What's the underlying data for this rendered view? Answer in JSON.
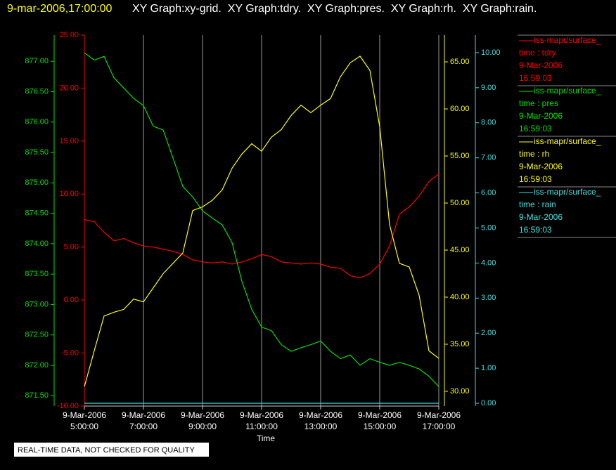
{
  "chart_data": {
    "type": "line",
    "title_time": "9-mar-2006,17:00:00",
    "title": "XY Graph:xy-grid.  XY Graph:tdry.  XY Graph:pres.  XY Graph:rh.  XY Graph:rain.",
    "x_label": "Time",
    "notice": "REAL-TIME DATA, NOT CHECKED FOR QUALITY",
    "grid": true,
    "xlim": [
      "2006-03-09T05:00:00",
      "2006-03-09T17:00:00"
    ],
    "xticks": [
      {
        "value": "2006-03-09T05:00:00",
        "label": [
          "9-Mar-2006",
          "5:00:00"
        ]
      },
      {
        "value": "2006-03-09T07:00:00",
        "label": [
          "9-Mar-2006",
          "7:00:00"
        ]
      },
      {
        "value": "2006-03-09T09:00:00",
        "label": [
          "9-Mar-2006",
          "9:00:00"
        ]
      },
      {
        "value": "2006-03-09T11:00:00",
        "label": [
          "9-Mar-2006",
          "11:00:00"
        ]
      },
      {
        "value": "2006-03-09T13:00:00",
        "label": [
          "9-Mar-2006",
          "13:00:00"
        ]
      },
      {
        "value": "2006-03-09T15:00:00",
        "label": [
          "9-Mar-2006",
          "15:00:00"
        ]
      },
      {
        "value": "2006-03-09T17:00:00",
        "label": [
          "9-Mar-2006",
          "17:00:00"
        ]
      }
    ],
    "x": [
      "2006-03-09T05:00:00",
      "2006-03-09T05:20:00",
      "2006-03-09T05:40:00",
      "2006-03-09T06:00:00",
      "2006-03-09T06:20:00",
      "2006-03-09T06:40:00",
      "2006-03-09T07:00:00",
      "2006-03-09T07:20:00",
      "2006-03-09T07:40:00",
      "2006-03-09T08:00:00",
      "2006-03-09T08:20:00",
      "2006-03-09T08:40:00",
      "2006-03-09T09:00:00",
      "2006-03-09T09:20:00",
      "2006-03-09T09:40:00",
      "2006-03-09T10:00:00",
      "2006-03-09T10:20:00",
      "2006-03-09T10:40:00",
      "2006-03-09T11:00:00",
      "2006-03-09T11:20:00",
      "2006-03-09T11:40:00",
      "2006-03-09T12:00:00",
      "2006-03-09T12:20:00",
      "2006-03-09T12:40:00",
      "2006-03-09T13:00:00",
      "2006-03-09T13:20:00",
      "2006-03-09T13:40:00",
      "2006-03-09T14:00:00",
      "2006-03-09T14:20:00",
      "2006-03-09T14:40:00",
      "2006-03-09T15:00:00",
      "2006-03-09T15:20:00",
      "2006-03-09T15:40:00",
      "2006-03-09T16:00:00",
      "2006-03-09T16:20:00",
      "2006-03-09T16:40:00",
      "2006-03-09T17:00:00"
    ],
    "series": [
      {
        "source": "iss-mapr/surface_",
        "name": "time : tdry",
        "legend_date": "9-Mar-2006",
        "legend_time": "16:59:03",
        "color": "#ff0000",
        "ylim": [
          -10,
          25
        ],
        "yticks": [
          {
            "value": -10,
            "label": "-10.00"
          },
          {
            "value": -5,
            "label": "-5.00"
          },
          {
            "value": 0,
            "label": "0.00"
          },
          {
            "value": 5,
            "label": "5.00"
          },
          {
            "value": 10,
            "label": "10.00"
          },
          {
            "value": 15,
            "label": "15.00"
          },
          {
            "value": 20,
            "label": "20.00"
          },
          {
            "value": 25,
            "label": "25.00"
          }
        ],
        "values": [
          7.6,
          7.4,
          6.4,
          5.6,
          5.8,
          5.4,
          5.1,
          5.0,
          4.8,
          4.6,
          4.3,
          3.8,
          3.6,
          3.5,
          3.6,
          3.4,
          3.6,
          3.9,
          4.3,
          4.1,
          3.6,
          3.5,
          3.4,
          3.5,
          3.4,
          3.1,
          3.0,
          2.3,
          2.1,
          2.5,
          3.4,
          5.1,
          8.1,
          8.8,
          9.8,
          11.2,
          11.9
        ]
      },
      {
        "source": "iss-mapr/surface_",
        "name": "time : pres",
        "legend_date": "9-Mar-2006",
        "legend_time": "16:59:03",
        "color": "#00e000",
        "ylim": [
          871.33,
          877.43
        ],
        "yticks": [
          {
            "value": 871.5,
            "label": "871.50"
          },
          {
            "value": 872,
            "label": "872.00"
          },
          {
            "value": 872.5,
            "label": "872.50"
          },
          {
            "value": 873,
            "label": "873.00"
          },
          {
            "value": 873.5,
            "label": "873.50"
          },
          {
            "value": 874,
            "label": "874.00"
          },
          {
            "value": 874.5,
            "label": "874.50"
          },
          {
            "value": 875,
            "label": "875.00"
          },
          {
            "value": 875.5,
            "label": "875.50"
          },
          {
            "value": 876,
            "label": "876.00"
          },
          {
            "value": 876.5,
            "label": "876.50"
          },
          {
            "value": 877,
            "label": "877.00"
          }
        ],
        "values": [
          877.14,
          877.02,
          877.08,
          876.73,
          876.56,
          876.39,
          876.27,
          875.93,
          875.87,
          875.41,
          874.94,
          874.77,
          874.54,
          874.42,
          874.31,
          874.02,
          873.38,
          872.92,
          872.63,
          872.57,
          872.34,
          872.23,
          872.29,
          872.34,
          872.4,
          872.23,
          872.11,
          872.17,
          872.0,
          872.11,
          872.05,
          872.0,
          872.05,
          872.0,
          871.94,
          871.82,
          871.65
        ]
      },
      {
        "source": "iss-mapr/surface_",
        "name": "time : rh",
        "legend_date": "9-Mar-2006",
        "legend_time": "16:59:03",
        "color": "#ffff00",
        "ylim": [
          28.43,
          67.84
        ],
        "yticks": [
          {
            "value": 30,
            "label": "30.00"
          },
          {
            "value": 35,
            "label": "35.00"
          },
          {
            "value": 40,
            "label": "40.00"
          },
          {
            "value": 45,
            "label": "45.00"
          },
          {
            "value": 50,
            "label": "50.00"
          },
          {
            "value": 55,
            "label": "55.00"
          },
          {
            "value": 60,
            "label": "60.00"
          },
          {
            "value": 65,
            "label": "65.00"
          }
        ],
        "values": [
          30.5,
          34.3,
          38.0,
          38.4,
          38.7,
          39.8,
          39.5,
          41.0,
          42.5,
          43.6,
          44.7,
          49.2,
          49.6,
          50.3,
          51.4,
          53.7,
          55.2,
          56.3,
          55.5,
          57.0,
          57.8,
          59.3,
          60.4,
          59.6,
          60.4,
          61.1,
          63.4,
          64.9,
          65.6,
          64.1,
          58.1,
          47.7,
          43.6,
          43.2,
          40.2,
          34.3,
          33.5
        ]
      },
      {
        "source": "iss-mapr/surface_",
        "name": "time : rain",
        "legend_date": "9-Mar-2006",
        "legend_time": "16:59:03",
        "color": "#40e0e0",
        "ylim": [
          -0.08,
          10.5
        ],
        "yticks": [
          {
            "value": 0,
            "label": "0.00"
          },
          {
            "value": 1,
            "label": "1.00"
          },
          {
            "value": 2,
            "label": "2.00"
          },
          {
            "value": 3,
            "label": "3.00"
          },
          {
            "value": 4,
            "label": "4.00"
          },
          {
            "value": 5,
            "label": "5.00"
          },
          {
            "value": 6,
            "label": "6.00"
          },
          {
            "value": 7,
            "label": "7.00"
          },
          {
            "value": 8,
            "label": "8.00"
          },
          {
            "value": 9,
            "label": "9.00"
          },
          {
            "value": 10,
            "label": "10.00"
          }
        ],
        "values": [
          0,
          0,
          0,
          0,
          0,
          0,
          0,
          0,
          0,
          0,
          0,
          0,
          0,
          0,
          0,
          0,
          0,
          0,
          0,
          0,
          0,
          0,
          0,
          0,
          0,
          0,
          0,
          0,
          0,
          0,
          0,
          0,
          0,
          0,
          0,
          0,
          0
        ]
      }
    ]
  }
}
